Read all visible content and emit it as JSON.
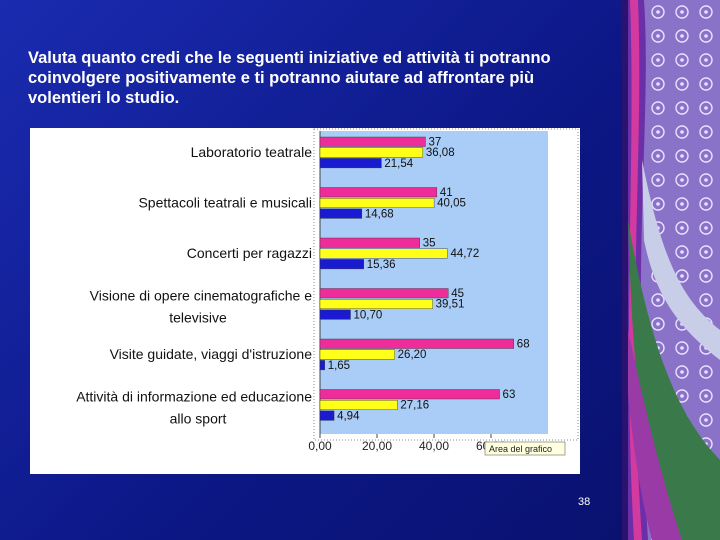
{
  "slide": {
    "title": "Valuta quanto credi che le seguenti iniziative ed attività ti potranno coinvolgere positivamente e ti potranno aiutare ad affrontare più volentieri lo studio.",
    "page_number": "38"
  },
  "chart_data": {
    "type": "bar",
    "orientation": "horizontal",
    "categories": [
      [
        "Laboratorio teatrale"
      ],
      [
        "Spettacoli teatrali e musicali"
      ],
      [
        "Concerti per ragazzi"
      ],
      [
        "Visione di opere cinematografiche e",
        "televisive"
      ],
      [
        "Visite guidate, viaggi d'istruzione"
      ],
      [
        "Attività di informazione ed educazione",
        "allo sport"
      ]
    ],
    "series": [
      {
        "color": "#ee2d9a",
        "values": [
          37,
          41,
          35,
          45,
          68,
          63
        ],
        "labels": [
          "37",
          "41",
          "35",
          "45",
          "68",
          "63"
        ]
      },
      {
        "color": "#ffff1a",
        "values": [
          36.08,
          40.05,
          44.72,
          39.51,
          26.2,
          27.16
        ],
        "labels": [
          "36,08",
          "40,05",
          "44,72",
          "39,51",
          "26,20",
          "27,16"
        ]
      },
      {
        "color": "#1a1ad0",
        "values": [
          21.54,
          14.68,
          15.36,
          10.7,
          1.65,
          4.94
        ],
        "labels": [
          "21,54",
          "14,68",
          "15,36",
          "10,70",
          "1,65",
          "4,94"
        ]
      }
    ],
    "x_ticks": [
      "0,00",
      "20,00",
      "40,00",
      "60,00"
    ],
    "x_tick_values": [
      0,
      20,
      40,
      60
    ],
    "xlim": [
      0,
      80
    ],
    "plot_area_color": "#a9cdf7",
    "tooltip": "Area del grafico"
  }
}
